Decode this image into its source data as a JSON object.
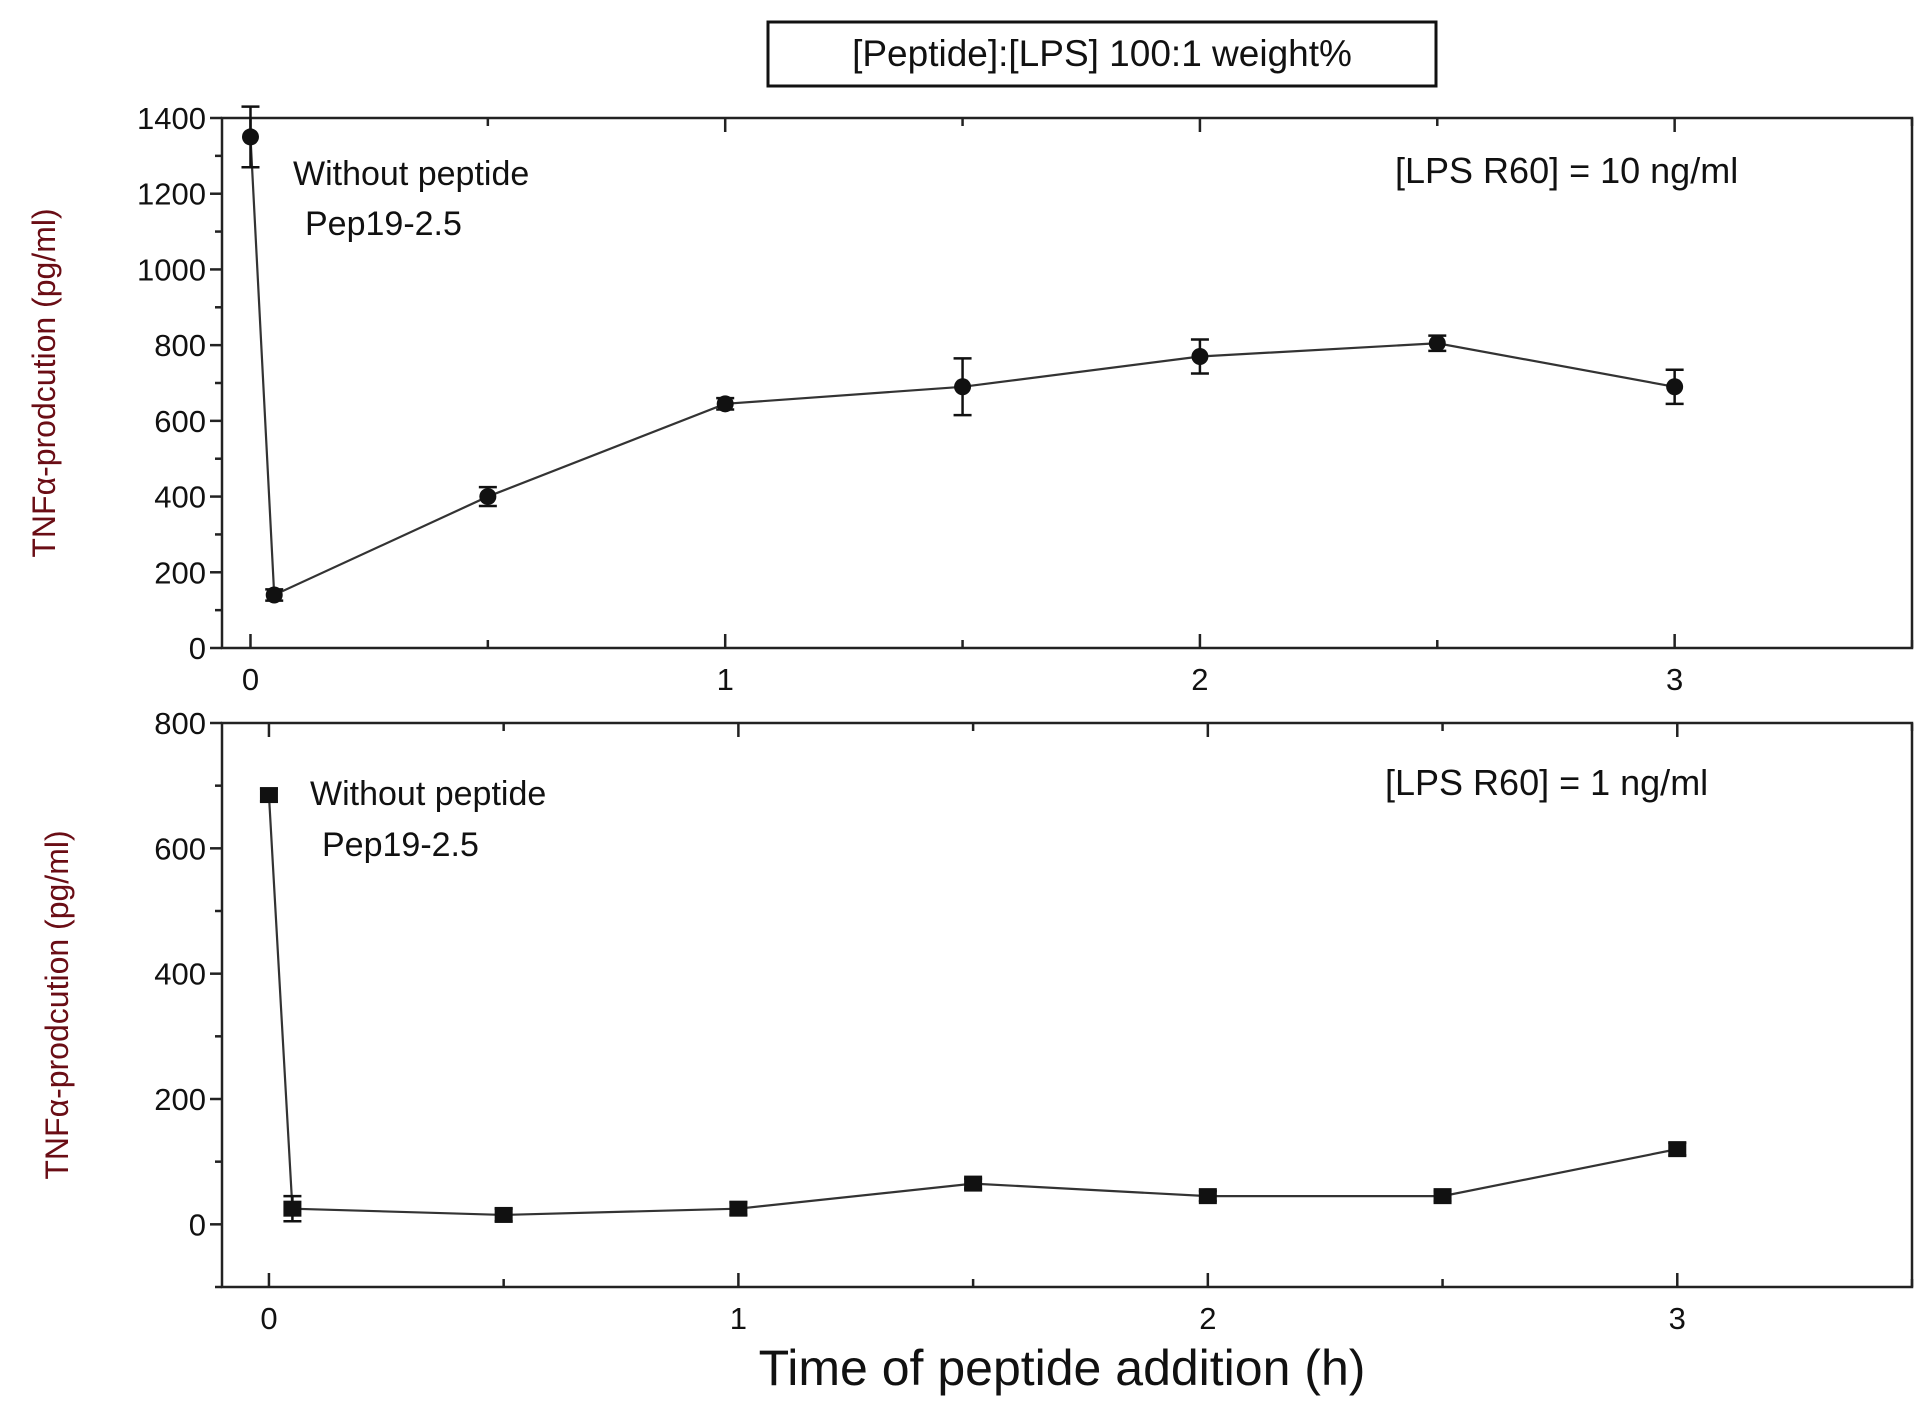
{
  "title": "[Peptide]:[LPS] 100:1 weight%",
  "xlabel": "Time of peptide addition (h)",
  "chart_data": [
    {
      "type": "line",
      "ylabel": "TNFα-prodcution (pg/ml)",
      "annotation_without": "Without peptide",
      "annotation_pep": "Pep19-2.5",
      "concentration_label": "[LPS R60] = 10 ng/ml",
      "marker": "circle",
      "xlim": [
        -0.06,
        3.5
      ],
      "ylim": [
        0,
        1400
      ],
      "xticks": [
        0,
        1,
        2,
        3
      ],
      "yticks": [
        0,
        200,
        400,
        600,
        800,
        1000,
        1200,
        1400
      ],
      "x": [
        0,
        0.05,
        0.5,
        1,
        1.5,
        2,
        2.5,
        3
      ],
      "y": [
        1350,
        140,
        400,
        645,
        690,
        770,
        805,
        690
      ],
      "err": [
        80,
        15,
        25,
        15,
        75,
        45,
        20,
        45
      ]
    },
    {
      "type": "line",
      "ylabel": "TNFα-prodcution (pg/ml)",
      "annotation_without": "Without peptide",
      "annotation_pep": "Pep19-2.5",
      "concentration_label": "[LPS R60] = 1 ng/ml",
      "marker": "square",
      "xlim": [
        -0.1,
        3.5
      ],
      "ylim": [
        -100,
        800
      ],
      "xticks": [
        0,
        1,
        2,
        3
      ],
      "yticks": [
        0,
        200,
        400,
        600,
        800
      ],
      "x": [
        0,
        0.05,
        0.5,
        1,
        1.5,
        2,
        2.5,
        3
      ],
      "y": [
        685,
        25,
        15,
        25,
        65,
        45,
        45,
        120
      ],
      "err": [
        10,
        20,
        10,
        10,
        8,
        8,
        8,
        10
      ]
    }
  ]
}
